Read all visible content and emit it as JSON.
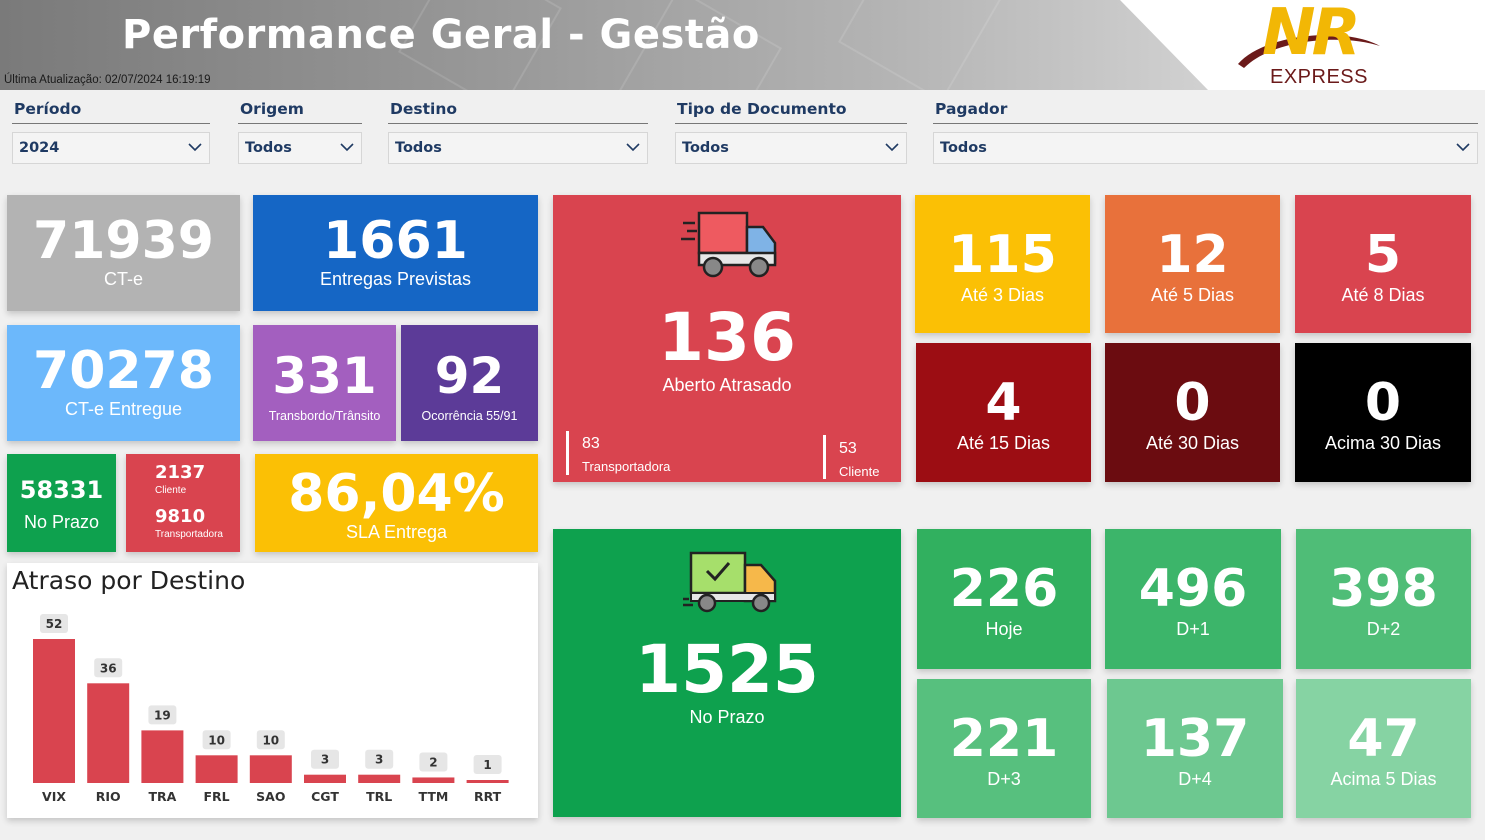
{
  "header": {
    "title": "Performance Geral - Gestão",
    "updated": "Última Atualização:  02/07/2024 16:19:19",
    "logo_text": "NR",
    "logo_sub": "EXPRESS"
  },
  "filters": [
    {
      "label": "Período",
      "value": "2024"
    },
    {
      "label": "Origem",
      "value": "Todos"
    },
    {
      "label": "Destino",
      "value": "Todos"
    },
    {
      "label": "Tipo de Documento",
      "value": "Todos"
    },
    {
      "label": "Pagador",
      "value": "Todos"
    }
  ],
  "kpis": {
    "cte": {
      "value": "71939",
      "label": "CT-e"
    },
    "entregas_previstas": {
      "value": "1661",
      "label": "Entregas Previstas"
    },
    "cte_entregue": {
      "value": "70278",
      "label": "CT-e Entregue"
    },
    "transbordo": {
      "value": "331",
      "label": "Transbordo/Trânsito"
    },
    "ocorrencia": {
      "value": "92",
      "label": "Ocorrência 55/91"
    },
    "no_prazo_small": {
      "value": "58331",
      "label": "No Prazo"
    },
    "split": {
      "cliente_value": "2137",
      "cliente_label": "Cliente",
      "transp_value": "9810",
      "transp_label": "Transportadora"
    },
    "sla": {
      "value": "86,04%",
      "label": "SLA Entrega"
    }
  },
  "atrasado": {
    "value": "136",
    "label": "Aberto Atrasado",
    "transp_value": "83",
    "transp_label": "Transportadora",
    "cliente_value": "53",
    "cliente_label": "Cliente",
    "icon": "delivery-truck-icon"
  },
  "atraso_tiles": [
    {
      "value": "115",
      "label": "Até 3 Dias",
      "color": "#fbc005"
    },
    {
      "value": "12",
      "label": "Até 5 Dias",
      "color": "#e8713b"
    },
    {
      "value": "5",
      "label": "Até 8 Dias",
      "color": "#d9444f"
    },
    {
      "value": "4",
      "label": "Até 15 Dias",
      "color": "#9c0d13"
    },
    {
      "value": "0",
      "label": "Até 30 Dias",
      "color": "#6b0c10"
    },
    {
      "value": "0",
      "label": "Acima 30 Dias",
      "color": "#000000"
    }
  ],
  "no_prazo": {
    "value": "1525",
    "label": "No Prazo",
    "icon": "delivery-check-truck-icon"
  },
  "prazo_tiles": [
    {
      "value": "226",
      "label": "Hoje",
      "color": "#31b05f"
    },
    {
      "value": "496",
      "label": "D+1",
      "color": "#3cb56a"
    },
    {
      "value": "398",
      "label": "D+2",
      "color": "#4fbd77"
    },
    {
      "value": "221",
      "label": "D+3",
      "color": "#57c07e"
    },
    {
      "value": "137",
      "label": "D+4",
      "color": "#6dc890"
    },
    {
      "value": "47",
      "label": "Acima 5 Dias",
      "color": "#86d3a3"
    }
  ],
  "chart_data": {
    "type": "bar",
    "title": "Atraso por Destino",
    "categories": [
      "VIX",
      "RIO",
      "TRA",
      "FRL",
      "SAO",
      "CGT",
      "TRL",
      "TTM",
      "RRT"
    ],
    "values": [
      52,
      36,
      19,
      10,
      10,
      3,
      3,
      2,
      1
    ],
    "ylim": [
      0,
      52
    ],
    "color": "#d9444f",
    "grid": false
  }
}
